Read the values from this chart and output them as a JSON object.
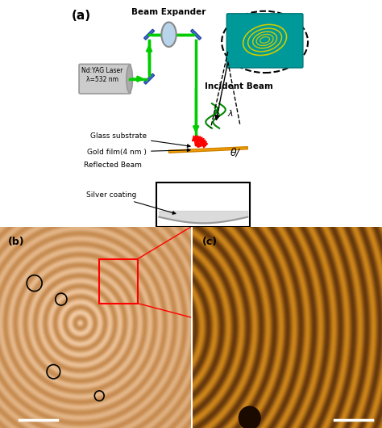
{
  "title": "",
  "panel_a_label": "(a)",
  "panel_b_label": "(b)",
  "panel_c_label": "(c)",
  "beam_expander_label": "Beam Expander",
  "incident_beam_label": "Incident Beam",
  "laser_label": "Nd:YAG Laser\nλ=532 nm",
  "glass_substrate_label": "Glass substrate",
  "gold_film_label": "Gold film(4 nm )",
  "reflected_beam_label": "Reflected Beam",
  "silver_coating_label": "Silver coating",
  "theta_label": "θ/",
  "lambda_label": "λ",
  "bg_color": "#ffffff",
  "green_color": "#00cc00",
  "dark_green": "#008800",
  "blue_color": "#4472c4",
  "red_color": "#ff0000",
  "orange_color": "#cc8800",
  "gray_color": "#999999",
  "light_gray": "#cccccc",
  "teal_color": "#008888",
  "black": "#000000",
  "fig_width": 4.74,
  "fig_height": 5.3,
  "dpi": 100
}
